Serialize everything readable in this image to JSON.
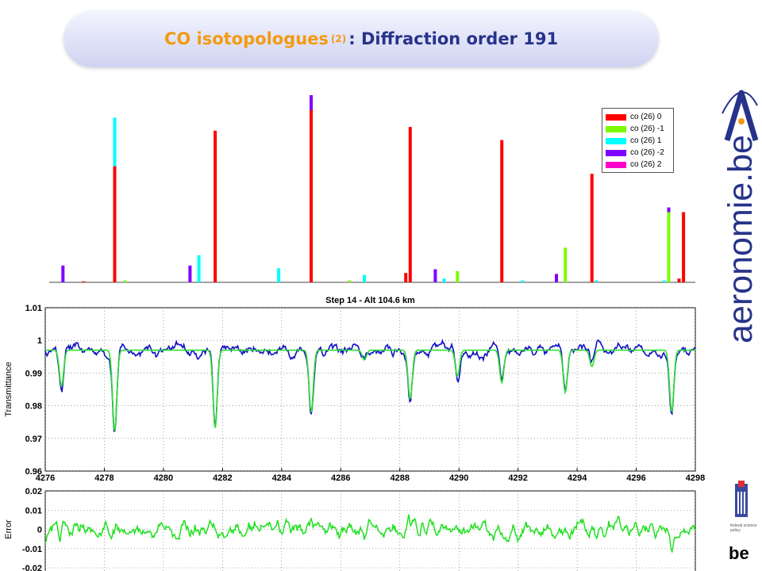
{
  "title": {
    "part1": "CO isotopologues",
    "sup": "(2)",
    "part2": ": Diffraction order 191"
  },
  "logo": {
    "text": "aeronomie.be"
  },
  "emblem": {
    "text": "federal science policy"
  },
  "be_mark": {
    "text": "be"
  },
  "colors": {
    "iso_0": "#ff0000",
    "iso_m1": "#7cfc00",
    "iso_1": "#00ffff",
    "iso_m2": "#7f00ff",
    "iso_2": "#ff00cc",
    "observed": "#1010c8",
    "fit": "#2ee02e",
    "error": "#20e020",
    "title_orange": "#f39a12",
    "title_blue": "#27338a"
  },
  "legend": {
    "items": [
      {
        "label": "co (26) 0",
        "color": "#ff0000"
      },
      {
        "label": "co (26) -1",
        "color": "#7cfc00"
      },
      {
        "label": "co (26) 1",
        "color": "#00ffff"
      },
      {
        "label": "co (26) -2",
        "color": "#7f00ff"
      },
      {
        "label": "co (26) 2",
        "color": "#ff00cc"
      }
    ]
  },
  "chart_data": [
    {
      "type": "bar",
      "description_of_axes": "line positions in wavenumber, relative intensity",
      "xlim": [
        4276,
        4298
      ],
      "ylim": [
        0,
        1
      ],
      "lines": [
        {
          "x": 4276.6,
          "y": 0.09,
          "iso": "co (26) -2"
        },
        {
          "x": 4277.3,
          "y": 0.005,
          "iso": "co (26) 0"
        },
        {
          "x": 4278.35,
          "y": 0.62,
          "iso": "co (26) 0"
        },
        {
          "x": 4278.35,
          "y": 0.88,
          "iso": "co (26) 1"
        },
        {
          "x": 4278.7,
          "y": 0.01,
          "iso": "co (26) -1"
        },
        {
          "x": 4280.9,
          "y": 0.09,
          "iso": "co (26) -2"
        },
        {
          "x": 4281.2,
          "y": 0.145,
          "iso": "co (26) 1"
        },
        {
          "x": 4281.75,
          "y": 0.81,
          "iso": "co (26) 0"
        },
        {
          "x": 4283.9,
          "y": 0.075,
          "iso": "co (26) 1"
        },
        {
          "x": 4285.0,
          "y": 1.0,
          "iso": "co (26) -2"
        },
        {
          "x": 4285.0,
          "y": 0.92,
          "iso": "co (26) 0"
        },
        {
          "x": 4286.3,
          "y": 0.01,
          "iso": "co (26) -1"
        },
        {
          "x": 4286.8,
          "y": 0.04,
          "iso": "co (26) 1"
        },
        {
          "x": 4288.2,
          "y": 0.05,
          "iso": "co (26) 0"
        },
        {
          "x": 4288.35,
          "y": 0.83,
          "iso": "co (26) 0"
        },
        {
          "x": 4289.2,
          "y": 0.07,
          "iso": "co (26) -2"
        },
        {
          "x": 4289.5,
          "y": 0.02,
          "iso": "co (26) 1"
        },
        {
          "x": 4289.95,
          "y": 0.06,
          "iso": "co (26) -1"
        },
        {
          "x": 4291.45,
          "y": 0.76,
          "iso": "co (26) 0"
        },
        {
          "x": 4292.15,
          "y": 0.01,
          "iso": "co (26) 1"
        },
        {
          "x": 4293.3,
          "y": 0.045,
          "iso": "co (26) -2"
        },
        {
          "x": 4293.6,
          "y": 0.185,
          "iso": "co (26) -1"
        },
        {
          "x": 4294.5,
          "y": 0.58,
          "iso": "co (26) 0"
        },
        {
          "x": 4294.65,
          "y": 0.01,
          "iso": "co (26) 1"
        },
        {
          "x": 4296.95,
          "y": 0.01,
          "iso": "co (26) 1"
        },
        {
          "x": 4297.1,
          "y": 0.4,
          "iso": "co (26) -2"
        },
        {
          "x": 4297.1,
          "y": 0.375,
          "iso": "co (26) -1"
        },
        {
          "x": 4297.45,
          "y": 0.02,
          "iso": "co (26) 0"
        },
        {
          "x": 4297.6,
          "y": 0.375,
          "iso": "co (26) 0"
        }
      ]
    },
    {
      "type": "line",
      "title": "Step 14 - Alt 104.6 km",
      "ylabel": "Transmittance",
      "xlim": [
        4276,
        4298
      ],
      "ylim": [
        0.96,
        1.01
      ],
      "x_ticks": [
        4276,
        4278,
        4280,
        4282,
        4284,
        4286,
        4288,
        4290,
        4292,
        4294,
        4296,
        4298
      ],
      "y_ticks": [
        "0.96",
        "0.97",
        "0.98",
        "0.99",
        "1",
        "1.01"
      ],
      "grid": true,
      "baseline": 0.997,
      "absorption_lines": [
        {
          "x": 4276.55,
          "depth": 0.011
        },
        {
          "x": 4278.35,
          "depth": 0.025
        },
        {
          "x": 4281.75,
          "depth": 0.024
        },
        {
          "x": 4285.0,
          "depth": 0.019
        },
        {
          "x": 4286.8,
          "depth": 0.003
        },
        {
          "x": 4288.35,
          "depth": 0.015
        },
        {
          "x": 4289.95,
          "depth": 0.008
        },
        {
          "x": 4291.45,
          "depth": 0.01
        },
        {
          "x": 4293.6,
          "depth": 0.013
        },
        {
          "x": 4294.5,
          "depth": 0.005
        },
        {
          "x": 4297.2,
          "depth": 0.019
        }
      ],
      "series": [
        {
          "color": "#1010c8"
        },
        {
          "color": "#2ee02e"
        }
      ]
    },
    {
      "type": "line",
      "ylabel": "Error",
      "xlim": [
        4276,
        4298
      ],
      "ylim": [
        -0.02,
        0.02
      ],
      "y_ticks": [
        "0.02",
        "0.01",
        "0",
        "-0.01",
        "-0.02"
      ],
      "grid": true,
      "series": [
        {
          "color": "#20e020"
        }
      ]
    }
  ]
}
